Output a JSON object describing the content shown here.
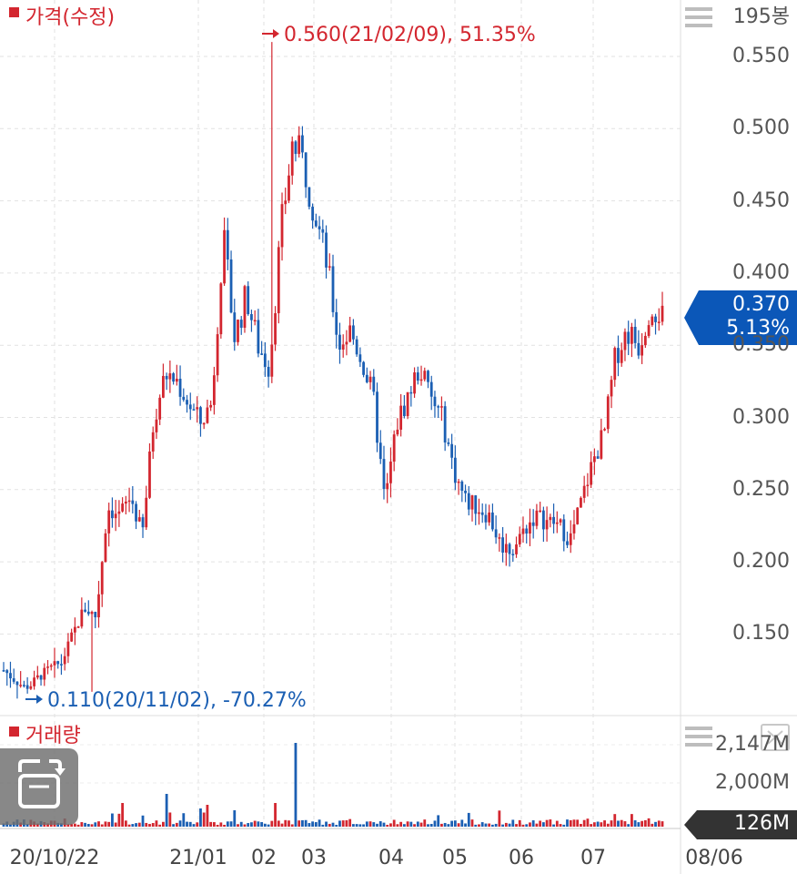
{
  "price_panel": {
    "legend": "가격(수정)",
    "bar_count": "195봉"
  },
  "volume_panel": {
    "legend": "거래량"
  },
  "annotations": {
    "high": "0.560(21/02/09), 51.35%",
    "low": "0.110(20/11/02), -70.27%"
  },
  "current": {
    "price": "0.370",
    "change": "5.13%",
    "volume": "126M"
  },
  "icons": {
    "menu": "hamburger-menu-icon",
    "zoom": "zoom-reset-icon",
    "rotate": "rotate-screen-icon"
  },
  "colors": {
    "up": "#d3262f",
    "down": "#1b5fb3",
    "current_badge": "#0b57b8",
    "volume_badge": "#333333"
  },
  "chart_data": [
    {
      "type": "candlestick",
      "title": "가격(수정)",
      "ylim": [
        0.105,
        0.565
      ],
      "y_ticks": [
        "0.550",
        "0.500",
        "0.450",
        "0.400",
        "0.350",
        "0.300",
        "0.250",
        "0.200",
        "0.150"
      ],
      "x_ticks": [
        "20/10/22",
        "21/01",
        "02",
        "03",
        "04",
        "05",
        "06",
        "07",
        "08/06"
      ],
      "grid": true,
      "high": {
        "value": 0.56,
        "date": "21/02/09",
        "change": "51.35%"
      },
      "low": {
        "value": 0.11,
        "date": "20/11/02",
        "change": "-70.27%"
      },
      "close": [
        0.125,
        0.118,
        0.112,
        0.12,
        0.126,
        0.13,
        0.15,
        0.168,
        0.162,
        0.238,
        0.232,
        0.245,
        0.218,
        0.3,
        0.33,
        0.325,
        0.31,
        0.296,
        0.31,
        0.425,
        0.355,
        0.385,
        0.35,
        0.335,
        0.43,
        0.49,
        0.475,
        0.44,
        0.405,
        0.35,
        0.36,
        0.34,
        0.312,
        0.24,
        0.295,
        0.315,
        0.335,
        0.312,
        0.298,
        0.262,
        0.242,
        0.238,
        0.232,
        0.212,
        0.208,
        0.222,
        0.232,
        0.228,
        0.226,
        0.215,
        0.242,
        0.27,
        0.29,
        0.345,
        0.36,
        0.35,
        0.38,
        0.37
      ]
    },
    {
      "type": "bar",
      "title": "거래량",
      "y_ticks": [
        "2,147M",
        "2,000M"
      ],
      "peak_label": "2,147M",
      "current": "126M"
    }
  ]
}
